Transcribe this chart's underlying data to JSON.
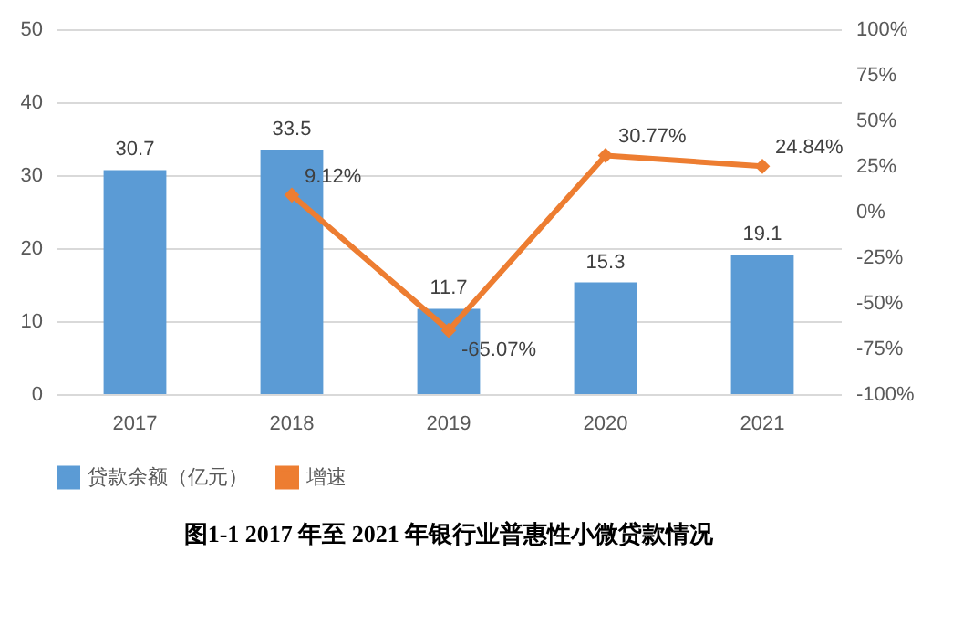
{
  "chart_data": {
    "type": "bar",
    "title": "图1-1    2017 年至 2021 年银行业普惠性小微贷款情况",
    "categories": [
      "2017",
      "2018",
      "2019",
      "2020",
      "2021"
    ],
    "series": [
      {
        "name": "贷款余额（亿元）",
        "color": "#5b9bd5",
        "values": [
          30.7,
          33.5,
          11.7,
          15.3,
          19.1
        ]
      },
      {
        "name": "增速",
        "type": "line",
        "axis": "y2",
        "color": "#ed7d31",
        "values": [
          null,
          9.12,
          -65.07,
          30.77,
          24.84
        ],
        "value_labels": [
          null,
          "9.12%",
          "-65.07%",
          "30.77%",
          "24.84%"
        ]
      }
    ],
    "data_labels": true,
    "ylim": [
      0,
      50
    ],
    "yticks": [
      0,
      10,
      20,
      30,
      40,
      50
    ],
    "y2lim": [
      -100,
      100
    ],
    "y2ticks": [
      {
        "value": -100,
        "label": "-100%"
      },
      {
        "value": -75,
        "label": "-75%"
      },
      {
        "value": -50,
        "label": "-50%"
      },
      {
        "value": -25,
        "label": "-25%"
      },
      {
        "value": 0,
        "label": "0%"
      },
      {
        "value": 25,
        "label": "25%"
      },
      {
        "value": 50,
        "label": "50%"
      },
      {
        "value": 75,
        "label": "75%"
      },
      {
        "value": 100,
        "label": "100%"
      }
    ],
    "grid": "y",
    "legend": "bottom",
    "marker": "diamond"
  }
}
